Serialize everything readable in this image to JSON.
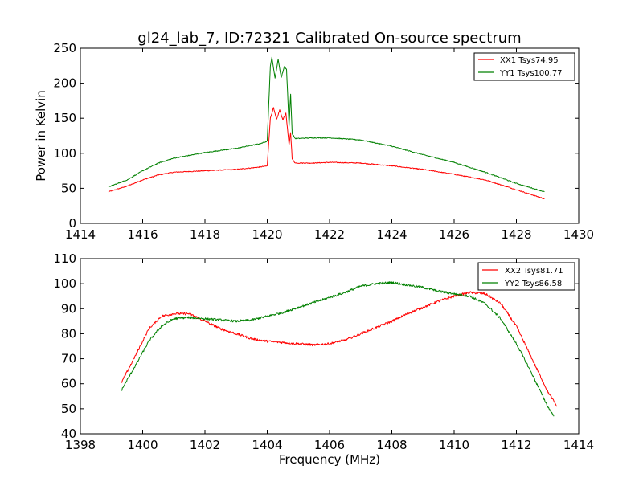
{
  "chart_data": [
    {
      "type": "line",
      "title": "gl24_lab_7, ID:72321 Calibrated On-source spectrum",
      "xlabel": "",
      "ylabel": "Power in Kelvin",
      "xlim": [
        1414,
        1430
      ],
      "ylim": [
        0,
        250
      ],
      "x_ticks": [
        1414,
        1416,
        1418,
        1420,
        1422,
        1424,
        1426,
        1428,
        1430
      ],
      "y_ticks": [
        0,
        50,
        100,
        150,
        200,
        250
      ],
      "grid": false,
      "legend_position": "top-right",
      "series": [
        {
          "name": "XX1 Tsys74.95",
          "color": "#ff0000",
          "points": [
            [
              1414.9,
              45
            ],
            [
              1415.5,
              53
            ],
            [
              1416.0,
              62
            ],
            [
              1416.5,
              69
            ],
            [
              1417.0,
              73
            ],
            [
              1418.0,
              75
            ],
            [
              1419.0,
              77
            ],
            [
              1419.7,
              80
            ],
            [
              1420.0,
              82
            ],
            [
              1420.1,
              150
            ],
            [
              1420.2,
              165
            ],
            [
              1420.3,
              148
            ],
            [
              1420.4,
              162
            ],
            [
              1420.5,
              148
            ],
            [
              1420.6,
              157
            ],
            [
              1420.7,
              112
            ],
            [
              1420.75,
              130
            ],
            [
              1420.8,
              92
            ],
            [
              1420.9,
              86
            ],
            [
              1421.5,
              86
            ],
            [
              1422.0,
              87
            ],
            [
              1423.0,
              86
            ],
            [
              1424.0,
              82
            ],
            [
              1425.0,
              77
            ],
            [
              1426.0,
              70
            ],
            [
              1427.0,
              62
            ],
            [
              1428.0,
              48
            ],
            [
              1428.9,
              35
            ]
          ]
        },
        {
          "name": "YY1 Tsys100.77",
          "color": "#008000",
          "points": [
            [
              1414.9,
              52
            ],
            [
              1415.5,
              62
            ],
            [
              1416.0,
              75
            ],
            [
              1416.5,
              86
            ],
            [
              1417.0,
              93
            ],
            [
              1418.0,
              101
            ],
            [
              1419.0,
              107
            ],
            [
              1419.7,
              113
            ],
            [
              1420.0,
              117
            ],
            [
              1420.1,
              225
            ],
            [
              1420.15,
              237
            ],
            [
              1420.25,
              207
            ],
            [
              1420.35,
              234
            ],
            [
              1420.45,
              208
            ],
            [
              1420.55,
              224
            ],
            [
              1420.62,
              220
            ],
            [
              1420.7,
              138
            ],
            [
              1420.75,
              185
            ],
            [
              1420.8,
              128
            ],
            [
              1420.9,
              121
            ],
            [
              1421.5,
              122
            ],
            [
              1422.0,
              122
            ],
            [
              1423.0,
              119
            ],
            [
              1424.0,
              110
            ],
            [
              1425.0,
              98
            ],
            [
              1426.0,
              87
            ],
            [
              1427.0,
              73
            ],
            [
              1428.0,
              57
            ],
            [
              1428.9,
              45
            ]
          ]
        }
      ]
    },
    {
      "type": "line",
      "title": "",
      "xlabel": "Frequency (MHz)",
      "ylabel": "",
      "xlim": [
        1398,
        1414
      ],
      "ylim": [
        40,
        110
      ],
      "x_ticks": [
        1398,
        1400,
        1402,
        1404,
        1406,
        1408,
        1410,
        1412,
        1414
      ],
      "y_ticks": [
        40,
        50,
        60,
        70,
        80,
        90,
        100,
        110
      ],
      "grid": false,
      "legend_position": "top-right",
      "series": [
        {
          "name": "XX2 Tsys81.71",
          "color": "#ff0000",
          "points": [
            [
              1399.3,
              60
            ],
            [
              1399.8,
              72
            ],
            [
              1400.2,
              82
            ],
            [
              1400.6,
              87
            ],
            [
              1401.0,
              88
            ],
            [
              1401.5,
              88
            ],
            [
              1402.0,
              85
            ],
            [
              1402.5,
              82
            ],
            [
              1403.0,
              80
            ],
            [
              1403.5,
              78
            ],
            [
              1404.0,
              77
            ],
            [
              1404.5,
              76.5
            ],
            [
              1405.0,
              76
            ],
            [
              1405.5,
              75.5
            ],
            [
              1406.0,
              76
            ],
            [
              1406.5,
              77.5
            ],
            [
              1407.0,
              80
            ],
            [
              1407.5,
              82.5
            ],
            [
              1408.0,
              85
            ],
            [
              1408.5,
              88
            ],
            [
              1409.0,
              90.5
            ],
            [
              1409.5,
              93
            ],
            [
              1410.0,
              95
            ],
            [
              1410.5,
              96.5
            ],
            [
              1411.0,
              96
            ],
            [
              1411.5,
              92
            ],
            [
              1412.0,
              83
            ],
            [
              1412.5,
              70
            ],
            [
              1413.0,
              57
            ],
            [
              1413.3,
              51
            ]
          ]
        },
        {
          "name": "YY2 Tsys86.58",
          "color": "#008000",
          "points": [
            [
              1399.3,
              57
            ],
            [
              1399.8,
              68
            ],
            [
              1400.2,
              77
            ],
            [
              1400.6,
              83
            ],
            [
              1401.0,
              86
            ],
            [
              1401.5,
              86.5
            ],
            [
              1402.0,
              86
            ],
            [
              1402.5,
              85.5
            ],
            [
              1403.0,
              85
            ],
            [
              1403.5,
              85.5
            ],
            [
              1404.0,
              87
            ],
            [
              1404.5,
              88.5
            ],
            [
              1405.0,
              90.5
            ],
            [
              1405.5,
              92.5
            ],
            [
              1406.0,
              94.5
            ],
            [
              1406.5,
              96.5
            ],
            [
              1407.0,
              99
            ],
            [
              1407.5,
              100
            ],
            [
              1408.0,
              100.5
            ],
            [
              1408.5,
              99.5
            ],
            [
              1409.0,
              98.5
            ],
            [
              1409.5,
              97
            ],
            [
              1410.0,
              96
            ],
            [
              1410.5,
              95
            ],
            [
              1411.0,
              92
            ],
            [
              1411.5,
              86
            ],
            [
              1412.0,
              76
            ],
            [
              1412.5,
              64
            ],
            [
              1413.0,
              51
            ],
            [
              1413.2,
              47
            ]
          ]
        }
      ]
    }
  ]
}
